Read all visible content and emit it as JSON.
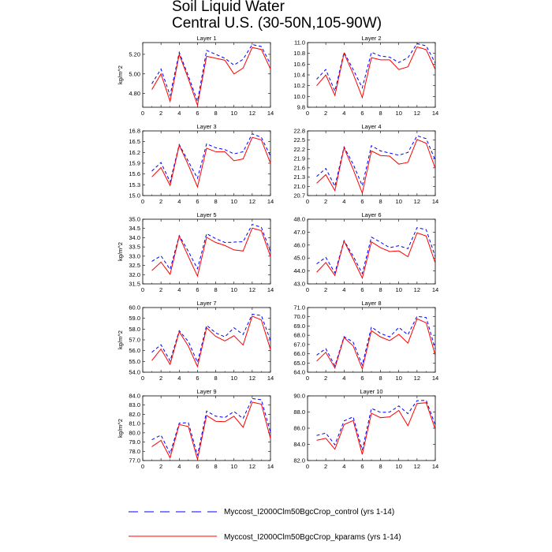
{
  "title": {
    "line1": "Soil Liquid Water",
    "line2": "Central U.S. (30-50N,105-90W)"
  },
  "colors": {
    "control": "#0000ff",
    "kparams": "#ff0000",
    "axis": "#000000"
  },
  "legend": [
    {
      "name": "Myccost_I2000Clm50BgcCrop_control (yrs 1-14)",
      "style": "dashed",
      "color": "#0000ff"
    },
    {
      "name": "Myccost_I2000Clm50BgcCrop_kparams (yrs 1-14)",
      "style": "solid",
      "color": "#ff0000"
    }
  ],
  "chart_data": [
    {
      "type": "line",
      "title": "Layer 1",
      "ylabel": "kg/m^2",
      "x": [
        1,
        2,
        3,
        4,
        5,
        6,
        7,
        8,
        9,
        10,
        11,
        12,
        13,
        14
      ],
      "xlim": [
        0,
        14
      ],
      "xticks": [
        0,
        2,
        4,
        6,
        8,
        10,
        12,
        14
      ],
      "ylim": [
        4.66,
        5.32
      ],
      "yticks": [
        "4.80",
        "5.00",
        "5.20"
      ],
      "series": [
        {
          "name": "Myccost_I2000Clm50BgcCrop_control (yrs 1-14)",
          "values": [
            4.9,
            5.05,
            4.78,
            5.22,
            4.98,
            4.72,
            5.24,
            5.2,
            5.16,
            5.09,
            5.15,
            5.3,
            5.28,
            5.1
          ]
        },
        {
          "name": "Myccost_I2000Clm50BgcCrop_kparams (yrs 1-14)",
          "values": [
            4.84,
            5.0,
            4.72,
            5.2,
            4.95,
            4.68,
            5.18,
            5.16,
            5.14,
            5.0,
            5.06,
            5.27,
            5.25,
            5.05
          ]
        }
      ]
    },
    {
      "type": "line",
      "title": "Layer 2",
      "ylabel": "",
      "x": [
        1,
        2,
        3,
        4,
        5,
        6,
        7,
        8,
        9,
        10,
        11,
        12,
        13,
        14
      ],
      "xlim": [
        0,
        14
      ],
      "xticks": [
        0,
        2,
        4,
        6,
        8,
        10,
        12,
        14
      ],
      "ylim": [
        9.8,
        11.0
      ],
      "yticks": [
        "9.8",
        "10.0",
        "10.2",
        "10.4",
        "10.6",
        "10.8",
        "11.0"
      ],
      "series": [
        {
          "name": "Myccost_I2000Clm50BgcCrop_control (yrs 1-14)",
          "values": [
            10.32,
            10.5,
            10.1,
            10.82,
            10.5,
            10.16,
            10.82,
            10.75,
            10.73,
            10.63,
            10.72,
            10.98,
            10.94,
            10.62
          ]
        },
        {
          "name": "Myccost_I2000Clm50BgcCrop_kparams (yrs 1-14)",
          "values": [
            10.2,
            10.4,
            10.02,
            10.8,
            10.42,
            9.98,
            10.72,
            10.68,
            10.68,
            10.5,
            10.55,
            10.92,
            10.87,
            10.5
          ]
        }
      ]
    },
    {
      "type": "line",
      "title": "Layer 3",
      "ylabel": "",
      "x": [
        1,
        2,
        3,
        4,
        5,
        6,
        7,
        8,
        9,
        10,
        11,
        12,
        13,
        14
      ],
      "xlim": [
        0,
        14
      ],
      "xticks": [
        0,
        2,
        4,
        6,
        8,
        10,
        12,
        14
      ],
      "ylim": [
        15.0,
        16.8
      ],
      "yticks": [
        "15.0",
        "15.3",
        "15.6",
        "15.9",
        "16.2",
        "16.5",
        "16.8"
      ],
      "series": [
        {
          "name": "Myccost_I2000Clm50BgcCrop_control (yrs 1-14)",
          "values": [
            15.68,
            15.92,
            15.38,
            16.42,
            15.95,
            15.48,
            16.44,
            16.33,
            16.28,
            16.16,
            16.22,
            16.72,
            16.62,
            16.1
          ]
        },
        {
          "name": "Myccost_I2000Clm50BgcCrop_kparams (yrs 1-14)",
          "values": [
            15.52,
            15.78,
            15.28,
            16.4,
            15.85,
            15.24,
            16.32,
            16.22,
            16.22,
            15.97,
            16.02,
            16.62,
            16.55,
            15.9
          ]
        }
      ]
    },
    {
      "type": "line",
      "title": "Layer 4",
      "ylabel": "",
      "x": [
        1,
        2,
        3,
        4,
        5,
        6,
        7,
        8,
        9,
        10,
        11,
        12,
        13,
        14
      ],
      "xlim": [
        0,
        14
      ],
      "xticks": [
        0,
        2,
        4,
        6,
        8,
        10,
        12,
        14
      ],
      "ylim": [
        20.7,
        22.8
      ],
      "yticks": [
        "20.7",
        "21.0",
        "21.3",
        "21.6",
        "21.9",
        "22.2",
        "22.5",
        "22.8"
      ],
      "series": [
        {
          "name": "Myccost_I2000Clm50BgcCrop_control (yrs 1-14)",
          "values": [
            21.32,
            21.58,
            21.0,
            22.28,
            21.72,
            21.02,
            22.32,
            22.15,
            22.08,
            22.01,
            22.1,
            22.64,
            22.55,
            21.85
          ]
        },
        {
          "name": "Myccost_I2000Clm50BgcCrop_kparams (yrs 1-14)",
          "values": [
            21.1,
            21.38,
            20.86,
            22.25,
            21.55,
            20.78,
            22.15,
            22.0,
            21.98,
            21.72,
            21.78,
            22.52,
            22.4,
            21.58
          ]
        }
      ]
    },
    {
      "type": "line",
      "title": "Layer 5",
      "ylabel": "kg/m^2",
      "x": [
        1,
        2,
        3,
        4,
        5,
        6,
        7,
        8,
        9,
        10,
        11,
        12,
        13,
        14
      ],
      "xlim": [
        0,
        14
      ],
      "xticks": [
        0,
        2,
        4,
        6,
        8,
        10,
        12,
        14
      ],
      "ylim": [
        31.5,
        35.0
      ],
      "yticks": [
        "31.5",
        "32.0",
        "32.5",
        "33.0",
        "33.5",
        "34.0",
        "34.5",
        "35.0"
      ],
      "series": [
        {
          "name": "Myccost_I2000Clm50BgcCrop_control (yrs 1-14)",
          "values": [
            32.72,
            33.02,
            32.28,
            34.12,
            33.26,
            32.32,
            34.22,
            33.95,
            33.74,
            33.76,
            33.78,
            34.72,
            34.56,
            33.25
          ]
        },
        {
          "name": "Myccost_I2000Clm50BgcCrop_kparams (yrs 1-14)",
          "values": [
            32.22,
            32.68,
            32.02,
            34.08,
            32.98,
            31.92,
            34.02,
            33.74,
            33.58,
            33.34,
            33.28,
            34.52,
            34.38,
            32.98
          ]
        }
      ]
    },
    {
      "type": "line",
      "title": "Layer 6",
      "ylabel": "",
      "x": [
        1,
        2,
        3,
        4,
        5,
        6,
        7,
        8,
        9,
        10,
        11,
        12,
        13,
        14
      ],
      "xlim": [
        0,
        14
      ],
      "xticks": [
        0,
        2,
        4,
        6,
        8,
        10,
        12,
        14
      ],
      "ylim": [
        43.0,
        48.0
      ],
      "yticks": [
        "43.0",
        "44.0",
        "45.0",
        "46.0",
        "47.0",
        "48.0"
      ],
      "series": [
        {
          "name": "Myccost_I2000Clm50BgcCrop_control (yrs 1-14)",
          "values": [
            44.55,
            45.05,
            43.85,
            46.35,
            45.15,
            43.8,
            46.62,
            46.22,
            45.8,
            45.95,
            45.72,
            47.35,
            47.2,
            45.1
          ]
        },
        {
          "name": "Myccost_I2000Clm50BgcCrop_kparams (yrs 1-14)",
          "values": [
            43.9,
            44.65,
            43.65,
            46.3,
            44.92,
            43.45,
            46.25,
            45.8,
            45.5,
            45.55,
            45.1,
            46.95,
            46.7,
            44.6
          ]
        }
      ]
    },
    {
      "type": "line",
      "title": "Layer 7",
      "ylabel": "kg/m^2",
      "x": [
        1,
        2,
        3,
        4,
        5,
        6,
        7,
        8,
        9,
        10,
        11,
        12,
        13,
        14
      ],
      "xlim": [
        0,
        14
      ],
      "xticks": [
        0,
        2,
        4,
        6,
        8,
        10,
        12,
        14
      ],
      "ylim": [
        54.0,
        60.0
      ],
      "yticks": [
        "54.0",
        "55.0",
        "56.0",
        "57.0",
        "58.0",
        "59.0",
        "60.0"
      ],
      "series": [
        {
          "name": "Myccost_I2000Clm50BgcCrop_control (yrs 1-14)",
          "values": [
            55.85,
            56.55,
            55.05,
            57.85,
            56.85,
            54.92,
            58.35,
            57.65,
            57.28,
            58.12,
            57.5,
            59.38,
            59.26,
            56.95
          ]
        },
        {
          "name": "Myccost_I2000Clm50BgcCrop_kparams (yrs 1-14)",
          "values": [
            55.08,
            56.15,
            54.72,
            57.75,
            56.42,
            54.52,
            58.12,
            57.32,
            56.9,
            57.38,
            56.52,
            59.2,
            58.85,
            56.1
          ]
        }
      ]
    },
    {
      "type": "line",
      "title": "Layer 8",
      "ylabel": "",
      "x": [
        1,
        2,
        3,
        4,
        5,
        6,
        7,
        8,
        9,
        10,
        11,
        12,
        13,
        14
      ],
      "xlim": [
        0,
        14
      ],
      "xticks": [
        0,
        2,
        4,
        6,
        8,
        10,
        12,
        14
      ],
      "ylim": [
        64.0,
        71.0
      ],
      "yticks": [
        "64.0",
        "65.0",
        "66.0",
        "67.0",
        "68.0",
        "69.0",
        "70.0",
        "71.0"
      ],
      "series": [
        {
          "name": "Myccost_I2000Clm50BgcCrop_control (yrs 1-14)",
          "values": [
            65.85,
            66.55,
            64.68,
            67.85,
            67.25,
            64.78,
            68.9,
            68.2,
            67.82,
            68.85,
            68.05,
            70.05,
            69.92,
            66.5
          ]
        },
        {
          "name": "Myccost_I2000Clm50BgcCrop_kparams (yrs 1-14)",
          "values": [
            65.2,
            66.15,
            64.45,
            67.75,
            66.85,
            64.35,
            68.5,
            67.82,
            67.42,
            68.1,
            67.15,
            69.78,
            69.35,
            65.8
          ]
        }
      ]
    },
    {
      "type": "line",
      "title": "Layer 9",
      "ylabel": "kg/m^2",
      "x": [
        1,
        2,
        3,
        4,
        5,
        6,
        7,
        8,
        9,
        10,
        11,
        12,
        13,
        14
      ],
      "xlim": [
        0,
        14
      ],
      "xticks": [
        0,
        2,
        4,
        6,
        8,
        10,
        12,
        14
      ],
      "ylim": [
        77.0,
        84.0
      ],
      "yticks": [
        "77.0",
        "78.0",
        "79.0",
        "80.0",
        "81.0",
        "82.0",
        "83.0",
        "84.0"
      ],
      "series": [
        {
          "name": "Myccost_I2000Clm50BgcCrop_control (yrs 1-14)",
          "values": [
            79.25,
            79.75,
            77.75,
            81.05,
            81.1,
            77.55,
            82.35,
            81.8,
            81.65,
            82.3,
            81.55,
            83.7,
            83.58,
            80.05
          ]
        },
        {
          "name": "Myccost_I2000Clm50BgcCrop_kparams (yrs 1-14)",
          "values": [
            78.5,
            79.18,
            77.3,
            80.9,
            80.68,
            77.12,
            81.88,
            81.25,
            81.2,
            81.8,
            80.6,
            83.32,
            83.1,
            79.38
          ]
        }
      ]
    },
    {
      "type": "line",
      "title": "Layer 10",
      "ylabel": "",
      "x": [
        1,
        2,
        3,
        4,
        5,
        6,
        7,
        8,
        9,
        10,
        11,
        12,
        13,
        14
      ],
      "xlim": [
        0,
        14
      ],
      "xticks": [
        0,
        2,
        4,
        6,
        8,
        10,
        12,
        14
      ],
      "ylim": [
        82.0,
        90.0
      ],
      "yticks": [
        "82.0",
        "84.0",
        "86.0",
        "88.0",
        "90.0"
      ],
      "series": [
        {
          "name": "Myccost_I2000Clm50BgcCrop_control (yrs 1-14)",
          "values": [
            85.1,
            85.4,
            83.95,
            86.9,
            87.4,
            83.3,
            88.45,
            87.95,
            88.0,
            88.75,
            87.8,
            89.4,
            89.45,
            86.4
          ]
        },
        {
          "name": "Myccost_I2000Clm50BgcCrop_kparams (yrs 1-14)",
          "values": [
            84.5,
            84.75,
            83.4,
            86.45,
            86.95,
            82.75,
            87.85,
            87.3,
            87.4,
            88.2,
            86.3,
            89.05,
            89.15,
            85.85
          ]
        }
      ]
    }
  ]
}
